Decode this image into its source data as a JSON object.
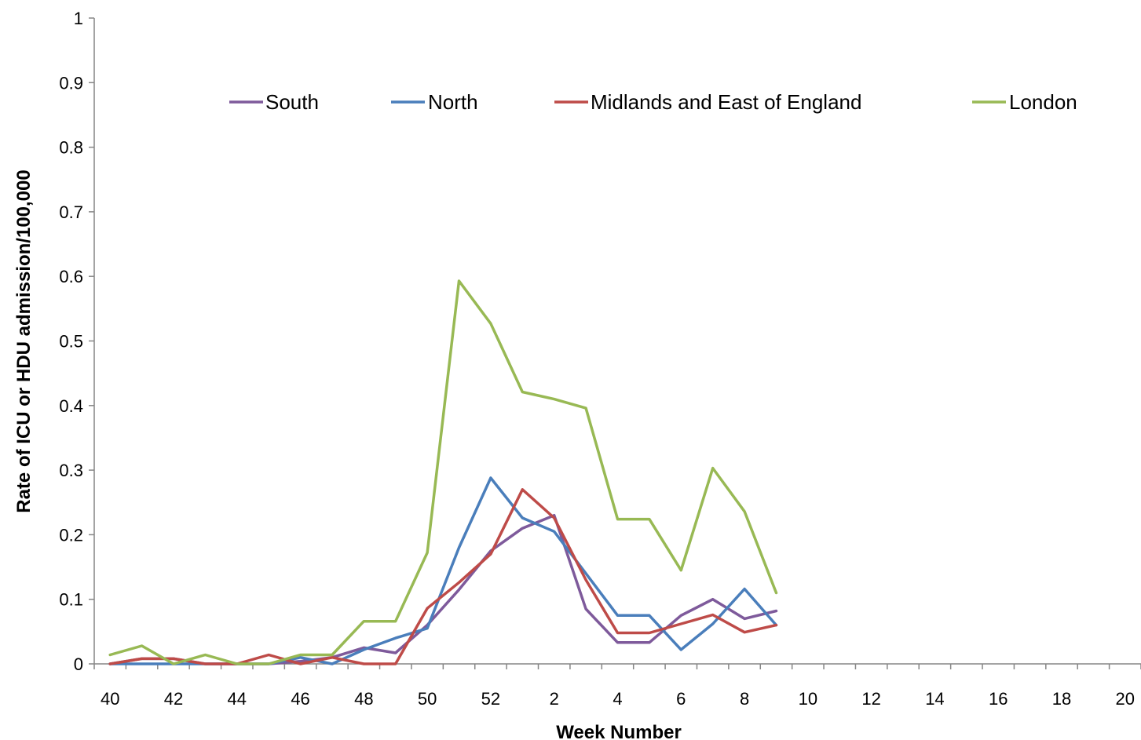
{
  "chart_data": {
    "type": "line",
    "xlabel": "Week Number",
    "ylabel": "Rate of ICU or HDU admission/100,000",
    "ylim": [
      0,
      1
    ],
    "y_ticks": [
      "0",
      "0.1",
      "0.2",
      "0.3",
      "0.4",
      "0.5",
      "0.6",
      "0.7",
      "0.8",
      "0.9",
      "1"
    ],
    "x_weeks": [
      40,
      41,
      42,
      43,
      44,
      45,
      46,
      47,
      48,
      49,
      50,
      51,
      52,
      1,
      2,
      3,
      4,
      5,
      6,
      7,
      8,
      9,
      10,
      11,
      12,
      13,
      14,
      15,
      16,
      17,
      18,
      19,
      20
    ],
    "x_tick_labels": [
      "40",
      "42",
      "44",
      "46",
      "48",
      "50",
      "52",
      "2",
      "4",
      "6",
      "8",
      "10",
      "12",
      "14",
      "16",
      "18",
      "20"
    ],
    "grid": false,
    "legend_position": "top",
    "series": [
      {
        "name": "South",
        "color": "#7E5A9B",
        "values": [
          0,
          0.008,
          0.008,
          0,
          0,
          0,
          0.004,
          0.01,
          0.025,
          0.017,
          0.06,
          0.115,
          0.175,
          0.21,
          0.23,
          0.085,
          0.033,
          0.033,
          0.075,
          0.1,
          0.07,
          0.082
        ]
      },
      {
        "name": "North",
        "color": "#4A7EBB",
        "values": [
          0,
          0,
          0,
          0,
          0,
          0,
          0.01,
          0,
          0.022,
          0.04,
          0.055,
          0.18,
          0.288,
          0.226,
          0.205,
          0.14,
          0.075,
          0.075,
          0.022,
          0.062,
          0.116,
          0.06
        ]
      },
      {
        "name": "Midlands and East of England",
        "color": "#BE4B48",
        "values": [
          0,
          0.008,
          0.008,
          0,
          0,
          0.014,
          0,
          0.01,
          0,
          0,
          0.086,
          0.126,
          0.17,
          0.27,
          0.226,
          0.13,
          0.048,
          0.048,
          0.062,
          0.076,
          0.049,
          0.06
        ]
      },
      {
        "name": "London",
        "color": "#98B954",
        "values": [
          0.014,
          0.028,
          0,
          0.014,
          0,
          0,
          0.014,
          0.014,
          0.066,
          0.066,
          0.172,
          0.593,
          0.527,
          0.421,
          0.41,
          0.396,
          0.224,
          0.224,
          0.145,
          0.303,
          0.236,
          0.11
        ]
      }
    ]
  }
}
